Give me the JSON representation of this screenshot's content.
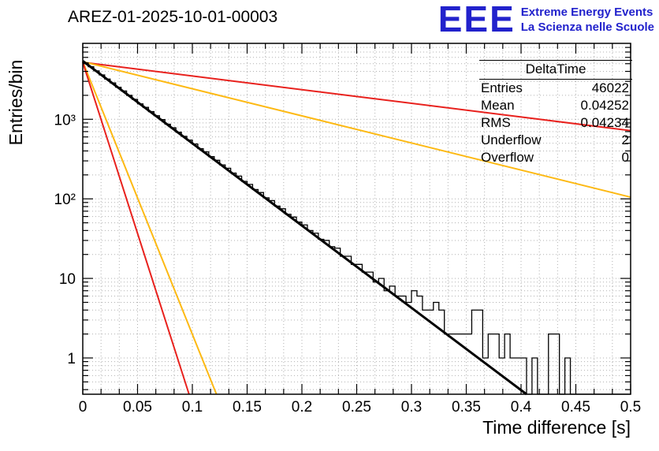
{
  "header": {
    "title": "AREZ-01-2025-10-01-00003",
    "logo": {
      "text": "EEE",
      "line1": "Extreme Energy Events",
      "line2": "La Scienza nelle Scuole",
      "color": "#2222cc"
    }
  },
  "stats": {
    "title": "DeltaTime",
    "rows": [
      {
        "label": "Entries",
        "value": "46022"
      },
      {
        "label": "Mean",
        "value": "0.04252"
      },
      {
        "label": "RMS",
        "value": "0.04234"
      },
      {
        "label": "Underflow",
        "value": "2"
      },
      {
        "label": "Overflow",
        "value": "0"
      }
    ]
  },
  "chart_data": {
    "type": "line",
    "subtype": "log-scale step histogram with exponential fit and reference lines",
    "title": "AREZ-01-2025-10-01-00003",
    "xlabel": "Time difference [s]",
    "ylabel": "Entries/bin",
    "xlim": [
      0,
      0.5
    ],
    "ylim_log": [
      0.35,
      9000
    ],
    "grid": true,
    "x_minor_divisions": 30,
    "x_ticks": [
      0,
      0.05,
      0.1,
      0.15,
      0.2,
      0.25,
      0.3,
      0.35,
      0.4,
      0.45,
      0.5
    ],
    "x_tick_labels": [
      "0",
      "0.05",
      "0.1",
      "0.15",
      "0.2",
      "0.25",
      "0.3",
      "0.35",
      "0.4",
      "0.45",
      "0.5"
    ],
    "y_major_ticks": [
      1,
      10,
      100,
      1000
    ],
    "y_tick_labels": [
      "1",
      "10",
      "10²",
      "10³"
    ],
    "colors": {
      "histogram": "#000000",
      "fit": "#000000",
      "red": "#e8211d",
      "yellow": "#fdb913",
      "grid": "#b0b0b0"
    },
    "histogram": {
      "x_min": 0,
      "bin_width": 0.005,
      "values": [
        5117,
        4577,
        4059,
        3615,
        3207,
        2868,
        2528,
        2271,
        1999,
        1781,
        1562,
        1412,
        1249,
        1110,
        991,
        868,
        782,
        688,
        611,
        548,
        489,
        428,
        389,
        339,
        305,
        267,
        242,
        211,
        193,
        166,
        152,
        131,
        120,
        103,
        95,
        81,
        75,
        64,
        59,
        51,
        47,
        40,
        37,
        31,
        30,
        25,
        24,
        19,
        19,
        15,
        15,
        12,
        12,
        9,
        10,
        7,
        8,
        6,
        6,
        5,
        7,
        6,
        4,
        4,
        5,
        4,
        2,
        2,
        2,
        2,
        2,
        4,
        4,
        1,
        2,
        2,
        1,
        2,
        1,
        1,
        1,
        0,
        1,
        0,
        0,
        2,
        2,
        0,
        1,
        0,
        0,
        0,
        0,
        0,
        0,
        0,
        0,
        0,
        0,
        0
      ]
    },
    "fit_line": {
      "name": "exponential-fit",
      "color": "#000000",
      "width": 3,
      "x": [
        0,
        0.405
      ],
      "y": [
        5400,
        0.35
      ]
    },
    "ref_lines": [
      {
        "name": "red-shallow",
        "color": "#e8211d",
        "width": 2,
        "x": [
          0,
          0.5
        ],
        "y": [
          5200,
          720
        ]
      },
      {
        "name": "yellow-shallow",
        "color": "#fdb913",
        "width": 2,
        "x": [
          0,
          0.5
        ],
        "y": [
          5300,
          105
        ]
      },
      {
        "name": "yellow-steep",
        "color": "#fdb913",
        "width": 2,
        "x": [
          0,
          0.122
        ],
        "y": [
          5300,
          0.35
        ]
      },
      {
        "name": "red-steep",
        "color": "#e8211d",
        "width": 2,
        "x": [
          0,
          0.097
        ],
        "y": [
          5200,
          0.35
        ]
      }
    ]
  }
}
